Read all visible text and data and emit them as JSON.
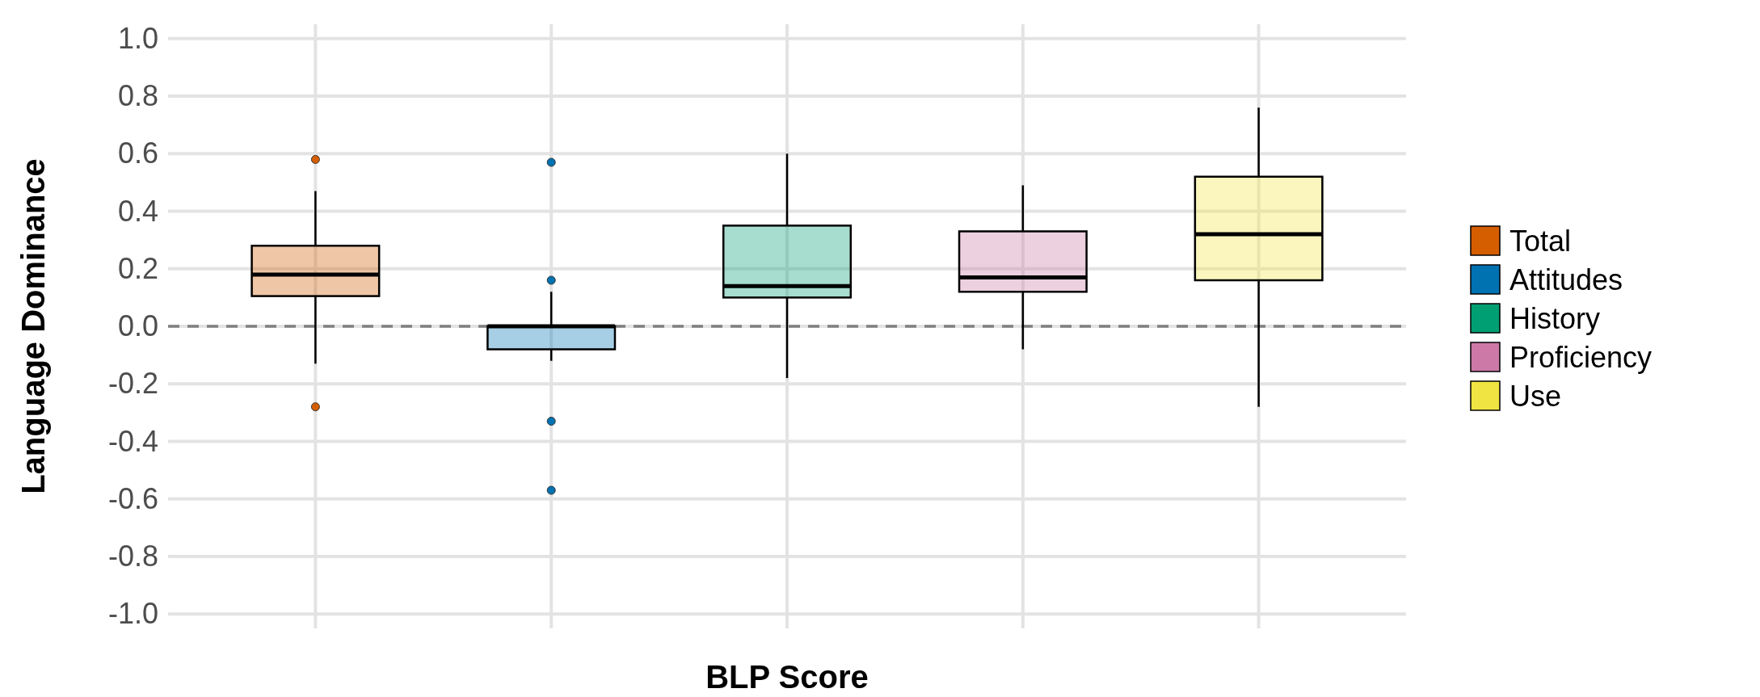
{
  "chart_data": {
    "type": "box",
    "xlabel": "BLP Score",
    "ylabel": "Language Dominance",
    "categories": [
      null,
      null,
      null,
      null,
      null
    ],
    "series": [
      {
        "name": "Total",
        "color": "#d55e00",
        "boxes": [
          {
            "low": -0.13,
            "q1": 0.105,
            "median": 0.18,
            "q3": 0.28,
            "high": 0.47,
            "outliers": [
              -0.28,
              0.58
            ]
          },
          null,
          null,
          null,
          null
        ]
      },
      {
        "name": "Attitudes",
        "color": "#0072b2",
        "boxes": [
          null,
          {
            "low": -0.12,
            "q1": -0.08,
            "median": 0.0,
            "q3": 0.0,
            "high": 0.12,
            "outliers": [
              -0.57,
              -0.33,
              0.16,
              0.57
            ]
          },
          null,
          null,
          null
        ]
      },
      {
        "name": "History",
        "color": "#009e73",
        "boxes": [
          null,
          null,
          {
            "low": -0.18,
            "q1": 0.1,
            "median": 0.14,
            "q3": 0.35,
            "high": 0.6
          },
          null,
          null
        ]
      },
      {
        "name": "Proficiency",
        "color": "#cc79a7",
        "boxes": [
          null,
          null,
          null,
          {
            "low": -0.08,
            "q1": 0.12,
            "median": 0.17,
            "q3": 0.33,
            "high": 0.49
          },
          null
        ]
      },
      {
        "name": "Use",
        "color": "#f0e442",
        "boxes": [
          null,
          null,
          null,
          null,
          {
            "low": -0.28,
            "q1": 0.16,
            "median": 0.32,
            "q3": 0.52,
            "high": 0.76
          }
        ]
      }
    ],
    "ylim": [
      -1.05,
      1.05
    ],
    "yticks": [
      {
        "value": -1,
        "label": "-1.0"
      },
      {
        "value": -0.8,
        "label": "-0.8"
      },
      {
        "value": -0.6,
        "label": "-0.6"
      },
      {
        "value": -0.4,
        "label": "-0.4"
      },
      {
        "value": -0.2,
        "label": "-0.2"
      },
      {
        "value": 0,
        "label": "0.0"
      },
      {
        "value": 0.2,
        "label": "0.2"
      },
      {
        "value": 0.4,
        "label": "0.4"
      },
      {
        "value": 0.6,
        "label": "0.6"
      },
      {
        "value": 0.8,
        "label": "0.8"
      },
      {
        "value": 1,
        "label": "1.0"
      }
    ],
    "ref_lines": [
      {
        "axis": "y",
        "value": 0,
        "color": "#808080",
        "line_style": "dashed"
      }
    ],
    "grid": true,
    "legend": "right"
  }
}
